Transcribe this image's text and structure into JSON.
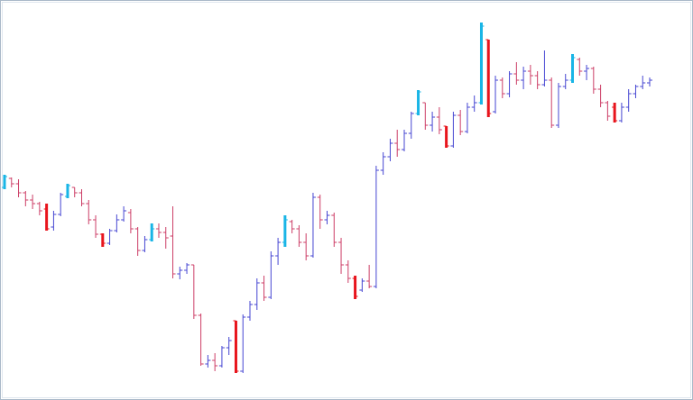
{
  "chart_data": {
    "type": "ohlc",
    "ylim": [
      0,
      444
    ],
    "colors": {
      "up": "#4646d2",
      "down": "#cc3d66",
      "up_highlight": "#19b5e6",
      "down_highlight": "#e8141c"
    },
    "highlight": [
      true,
      false,
      false,
      false,
      false,
      false,
      true,
      false,
      false,
      true,
      false,
      false,
      false,
      false,
      true,
      false,
      false,
      false,
      false,
      false,
      false,
      true,
      false,
      false,
      false,
      false,
      false,
      false,
      false,
      false,
      false,
      false,
      false,
      true,
      false,
      false,
      false,
      false,
      false,
      false,
      true,
      false,
      false,
      false,
      false,
      false,
      false,
      false,
      false,
      false,
      true,
      false,
      false,
      false,
      false,
      false,
      false,
      false,
      false,
      true,
      false,
      false,
      false,
      true,
      false,
      false,
      false,
      false,
      true,
      true,
      false,
      false,
      false,
      false,
      false,
      false,
      false,
      false,
      false,
      false,
      false,
      true,
      false,
      false,
      false,
      false,
      false,
      true,
      false,
      false,
      false,
      false,
      false
    ],
    "ohlc": [
      [
        236,
        250,
        234,
        248
      ],
      [
        246,
        247,
        236,
        240
      ],
      [
        240,
        245,
        225,
        230
      ],
      [
        230,
        232,
        215,
        222
      ],
      [
        222,
        228,
        212,
        218
      ],
      [
        218,
        220,
        205,
        210
      ],
      [
        212,
        218,
        188,
        190
      ],
      [
        192,
        210,
        188,
        206
      ],
      [
        206,
        230,
        204,
        228
      ],
      [
        226,
        240,
        224,
        238
      ],
      [
        236,
        236,
        225,
        230
      ],
      [
        230,
        234,
        215,
        218
      ],
      [
        218,
        222,
        195,
        200
      ],
      [
        200,
        205,
        180,
        184
      ],
      [
        184,
        185,
        170,
        174
      ],
      [
        174,
        190,
        172,
        188
      ],
      [
        188,
        206,
        186,
        200
      ],
      [
        200,
        215,
        198,
        210
      ],
      [
        208,
        212,
        185,
        190
      ],
      [
        190,
        192,
        160,
        166
      ],
      [
        166,
        182,
        164,
        178
      ],
      [
        178,
        196,
        176,
        190
      ],
      [
        190,
        196,
        180,
        186
      ],
      [
        186,
        192,
        168,
        180
      ],
      [
        182,
        215,
        135,
        140
      ],
      [
        140,
        148,
        134,
        144
      ],
      [
        144,
        152,
        140,
        150
      ],
      [
        150,
        150,
        90,
        94
      ],
      [
        94,
        96,
        38,
        40
      ],
      [
        40,
        50,
        36,
        44
      ],
      [
        44,
        52,
        32,
        38
      ],
      [
        38,
        60,
        36,
        58
      ],
      [
        58,
        70,
        50,
        66
      ],
      [
        88,
        88,
        30,
        32
      ],
      [
        32,
        95,
        30,
        92
      ],
      [
        92,
        110,
        88,
        106
      ],
      [
        106,
        135,
        100,
        130
      ],
      [
        130,
        138,
        110,
        114
      ],
      [
        114,
        165,
        112,
        160
      ],
      [
        160,
        180,
        150,
        175
      ],
      [
        175,
        205,
        170,
        200
      ],
      [
        198,
        200,
        185,
        190
      ],
      [
        190,
        194,
        170,
        175
      ],
      [
        175,
        185,
        155,
        160
      ],
      [
        160,
        230,
        158,
        225
      ],
      [
        225,
        228,
        190,
        200
      ],
      [
        200,
        210,
        195,
        205
      ],
      [
        205,
        208,
        170,
        175
      ],
      [
        175,
        180,
        140,
        150
      ],
      [
        150,
        155,
        130,
        135
      ],
      [
        135,
        138,
        112,
        115
      ],
      [
        122,
        135,
        120,
        132
      ],
      [
        132,
        150,
        124,
        126
      ],
      [
        126,
        260,
        124,
        255
      ],
      [
        255,
        275,
        250,
        270
      ],
      [
        270,
        290,
        265,
        285
      ],
      [
        285,
        300,
        270,
        278
      ],
      [
        278,
        300,
        276,
        296
      ],
      [
        296,
        320,
        290,
        318
      ],
      [
        318,
        344,
        316,
        342
      ],
      [
        330,
        330,
        300,
        305
      ],
      [
        305,
        320,
        298,
        314
      ],
      [
        314,
        325,
        295,
        300
      ],
      [
        304,
        304,
        280,
        282
      ],
      [
        282,
        320,
        280,
        316
      ],
      [
        316,
        322,
        294,
        298
      ],
      [
        298,
        330,
        296,
        325
      ],
      [
        325,
        338,
        320,
        330
      ],
      [
        330,
        419,
        328,
        415
      ],
      [
        400,
        400,
        314,
        318
      ],
      [
        320,
        360,
        318,
        355
      ],
      [
        355,
        358,
        335,
        340
      ],
      [
        340,
        365,
        336,
        362
      ],
      [
        362,
        375,
        350,
        355
      ],
      [
        355,
        370,
        345,
        365
      ],
      [
        365,
        372,
        350,
        360
      ],
      [
        360,
        365,
        345,
        350
      ],
      [
        350,
        388,
        348,
        355
      ],
      [
        355,
        358,
        302,
        305
      ],
      [
        305,
        352,
        302,
        348
      ],
      [
        348,
        362,
        345,
        355
      ],
      [
        355,
        384,
        352,
        380
      ],
      [
        378,
        380,
        360,
        365
      ],
      [
        365,
        372,
        355,
        368
      ],
      [
        368,
        370,
        340,
        345
      ],
      [
        345,
        350,
        325,
        330
      ],
      [
        330,
        332,
        310,
        315
      ],
      [
        325,
        330,
        308,
        310
      ],
      [
        310,
        330,
        308,
        325
      ],
      [
        325,
        345,
        320,
        340
      ],
      [
        340,
        350,
        335,
        348
      ],
      [
        348,
        360,
        345,
        352
      ],
      [
        352,
        358,
        348,
        355
      ]
    ]
  }
}
